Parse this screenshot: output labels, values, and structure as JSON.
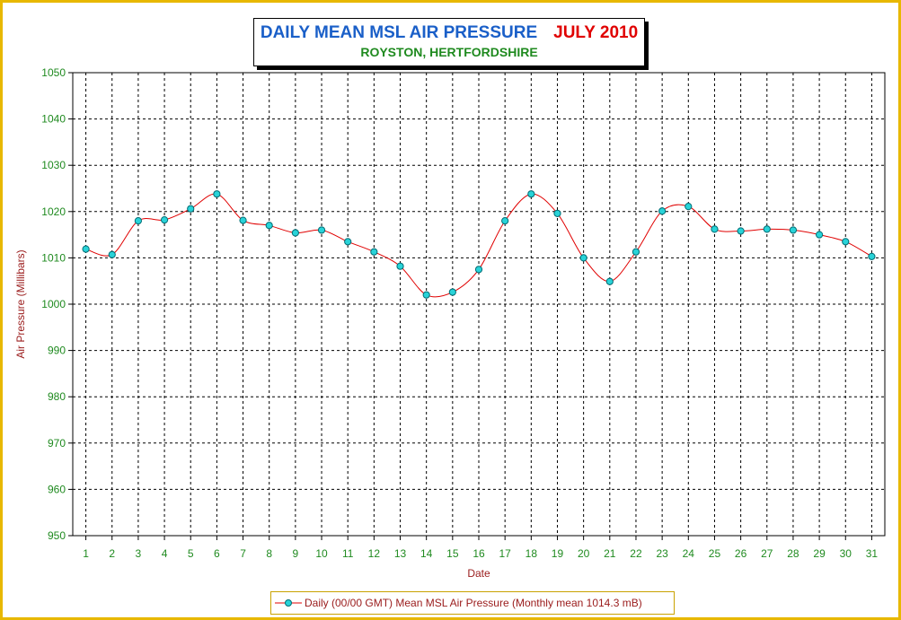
{
  "title": {
    "main": "DAILY MEAN MSL AIR PRESSURE",
    "month": "JULY 2010",
    "subtitle": "ROYSTON, HERTFORDSHIRE"
  },
  "legend": {
    "label": "Daily (00/00 GMT) Mean MSL Air Pressure (Monthly mean 1014.3 mB)"
  },
  "colors": {
    "title": "#1a5fc8",
    "month": "#e00000",
    "subtitle": "#1f8a1f",
    "frame": "#e8b800",
    "line": "#e00000",
    "marker_fill": "#29d3d8",
    "tick_labels": "#1f8a1f",
    "axis_title": "#9a1b1b"
  },
  "chart_data": {
    "type": "line",
    "title": "DAILY MEAN MSL AIR PRESSURE JULY 2010",
    "subtitle": "ROYSTON, HERTFORDSHIRE",
    "xlabel": "Date",
    "ylabel": "Air Pressure (Millibars)",
    "ylim": [
      950,
      1050
    ],
    "yticks": [
      950,
      960,
      970,
      980,
      990,
      1000,
      1010,
      1020,
      1030,
      1040,
      1050
    ],
    "x": [
      1,
      2,
      3,
      4,
      5,
      6,
      7,
      8,
      9,
      10,
      11,
      12,
      13,
      14,
      15,
      16,
      17,
      18,
      19,
      20,
      21,
      22,
      23,
      24,
      25,
      26,
      27,
      28,
      29,
      30,
      31
    ],
    "grid": true,
    "legend_position": "bottom",
    "series": [
      {
        "name": "Daily (00/00 GMT) Mean MSL Air Pressure (Monthly mean 1014.3 mB)",
        "values": [
          1011.9,
          1010.7,
          1018.0,
          1018.2,
          1020.6,
          1023.8,
          1018.1,
          1017.0,
          1015.4,
          1016.0,
          1013.5,
          1011.3,
          1008.2,
          1002.0,
          1002.6,
          1007.5,
          1018.0,
          1023.8,
          1019.6,
          1010.0,
          1004.9,
          1011.3,
          1020.1,
          1021.1,
          1016.2,
          1015.8,
          1016.2,
          1016.0,
          1015.0,
          1013.5,
          1010.3
        ]
      }
    ]
  }
}
